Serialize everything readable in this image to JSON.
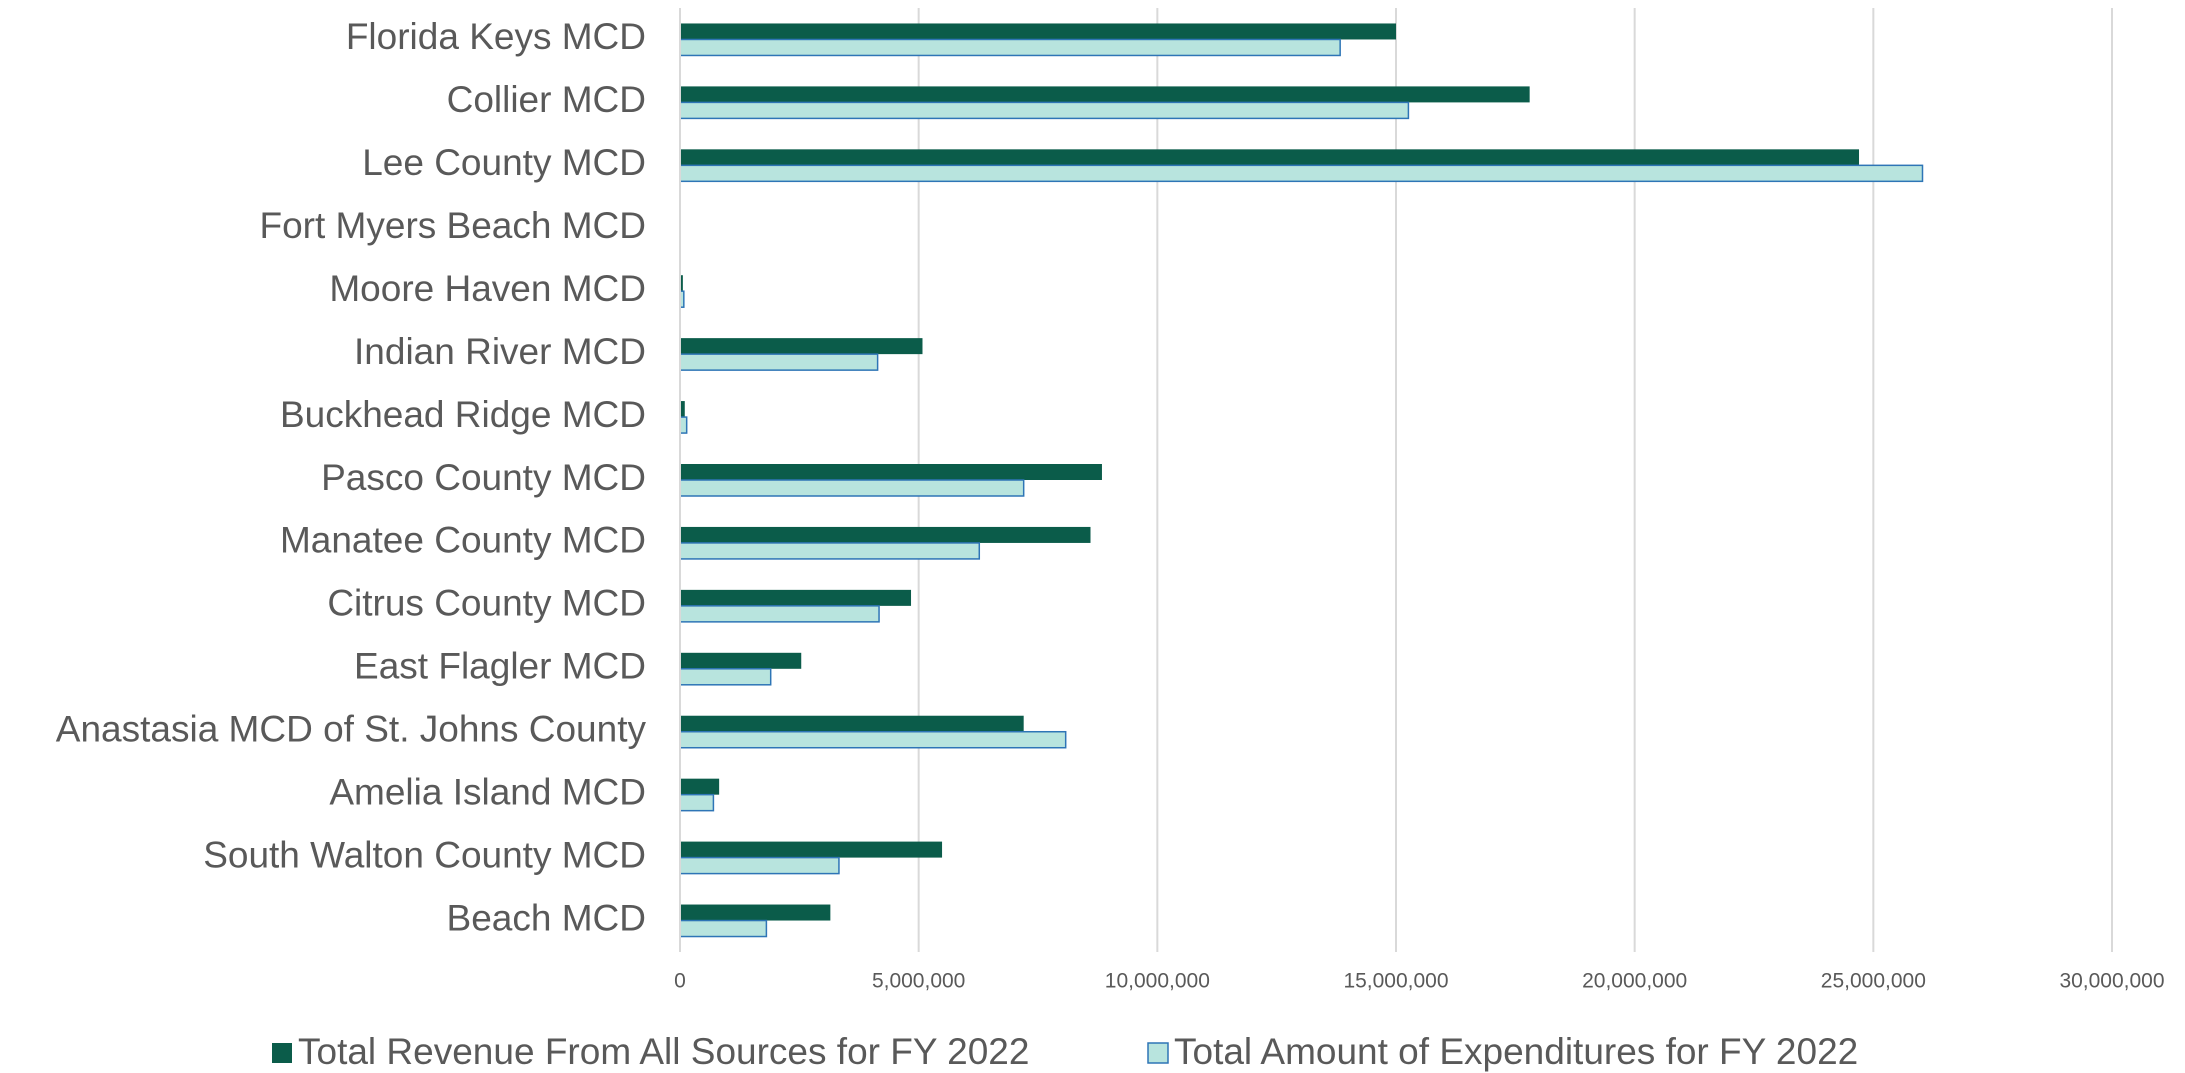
{
  "chart_data": {
    "type": "hbar",
    "categories": [
      "Florida Keys MCD",
      "Collier MCD",
      "Lee County MCD",
      "Fort Myers Beach MCD",
      "Moore Haven MCD",
      "Indian River MCD",
      "Buckhead Ridge MCD",
      "Pasco County MCD",
      "Manatee County MCD",
      "Citrus County MCD",
      "East Flagler MCD",
      "Anastasia MCD of St. Johns County",
      "Amelia Island MCD",
      "South Walton County MCD",
      "Beach MCD"
    ],
    "series": [
      {
        "name": "Total Revenue From All Sources for FY 2022",
        "color": "#0b5c4a",
        "values": [
          15000000,
          17800000,
          24700000,
          0,
          60000,
          5080000,
          100000,
          8840000,
          8600000,
          4840000,
          2540000,
          7200000,
          820000,
          5490000,
          3150000
        ]
      },
      {
        "name": "Total Amount of Expenditures for FY 2022",
        "color": "#b8e4de",
        "values": [
          13830000,
          15260000,
          26030000,
          0,
          80000,
          4140000,
          140000,
          7200000,
          6270000,
          4170000,
          1900000,
          8080000,
          700000,
          3330000,
          1810000
        ]
      }
    ],
    "xlim": [
      0,
      30000000
    ],
    "xticks": [
      0,
      {
        "value": 5000000,
        "label": "5,000,000"
      },
      {
        "value": 10000000,
        "label": "10,000,000"
      },
      {
        "value": 15000000,
        "label": "15,000,000"
      },
      {
        "value": 20000000,
        "label": "20,000,000"
      },
      {
        "value": 25000000,
        "label": "25,000,000"
      },
      {
        "value": 30000000,
        "label": "30,000,000"
      }
    ],
    "grid": true,
    "legend": "bottom"
  }
}
